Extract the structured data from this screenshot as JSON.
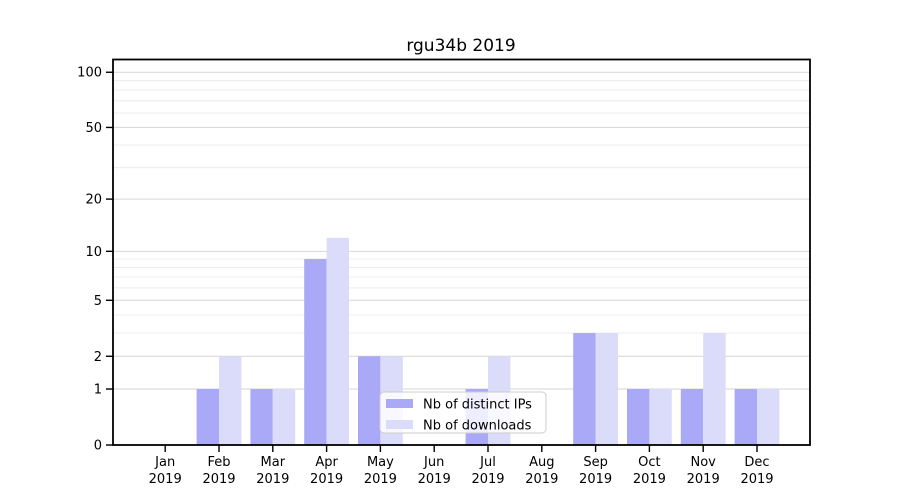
{
  "window": {
    "background": "#ffffff"
  },
  "chart_data": {
    "type": "bar",
    "title": "rgu34b 2019",
    "xlabel": "",
    "ylabel": "",
    "categories": [
      "Jan\n2019",
      "Feb\n2019",
      "Mar\n2019",
      "Apr\n2019",
      "May\n2019",
      "Jun\n2019",
      "Jul\n2019",
      "Aug\n2019",
      "Sep\n2019",
      "Oct\n2019",
      "Nov\n2019",
      "Dec\n2019"
    ],
    "series": [
      {
        "name": "Nb of distinct IPs",
        "color": "#a9a9f7",
        "values": [
          0,
          1,
          1,
          9,
          2,
          0,
          1,
          0,
          3,
          1,
          1,
          1
        ]
      },
      {
        "name": "Nb of downloads",
        "color": "#dbdbfa",
        "values": [
          0,
          2,
          1,
          12,
          2,
          0,
          2,
          0,
          3,
          1,
          3,
          1
        ]
      }
    ],
    "yscale": "log1p",
    "ylim": [
      0,
      118
    ],
    "y_major_ticks": [
      0,
      1,
      2,
      5,
      10,
      20,
      50,
      100
    ],
    "y_minor_ticks": [
      3,
      4,
      6,
      7,
      8,
      9,
      30,
      40,
      60,
      70,
      80,
      90
    ],
    "grid": "horizontal",
    "legend": {
      "position": "lower center",
      "labels": [
        "Nb of distinct IPs",
        "Nb of downloads"
      ]
    },
    "colors": {
      "axis": "#000000",
      "grid_major": "#d6d6d6",
      "grid_minor": "#ececec",
      "legend_border": "#cccccc",
      "legend_background": "#ffffff"
    }
  }
}
